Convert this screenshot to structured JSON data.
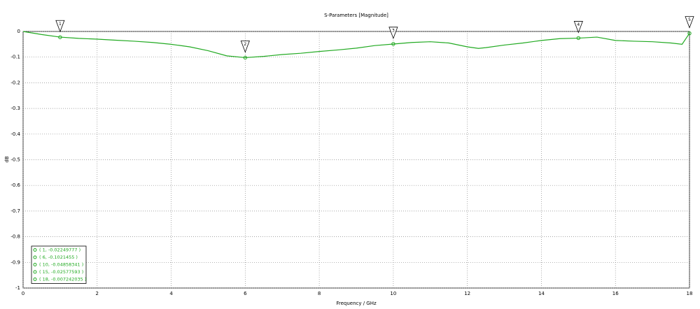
{
  "chart_data": {
    "type": "line",
    "title": "S-Parameters [Magnitude]",
    "x_label": "Frequency / GHz",
    "y_label": "dB",
    "xlim": [
      0,
      18
    ],
    "xticks": [
      0,
      2,
      4,
      6,
      8,
      10,
      12,
      14,
      16,
      18
    ],
    "ylim": [
      -1,
      0
    ],
    "yticks": [
      0,
      -0.1,
      -0.2,
      -0.3,
      -0.4,
      -0.5,
      -0.6,
      -0.7,
      -0.8,
      -0.9,
      -1
    ],
    "grid": true,
    "series": [
      {
        "color": "#22aa22",
        "x": [
          0,
          0.5,
          1,
          1.5,
          2,
          2.5,
          3,
          3.5,
          4,
          4.5,
          5,
          5.5,
          6,
          6.5,
          7,
          7.5,
          8,
          8.5,
          9,
          9.5,
          10,
          10.5,
          11,
          11.5,
          12,
          12.3,
          12.5,
          13,
          13.5,
          14,
          14.5,
          15,
          15.5,
          16,
          16.5,
          17,
          17.5,
          17.8,
          18
        ],
        "values": [
          0,
          -0.012,
          -0.022,
          -0.027,
          -0.03,
          -0.034,
          -0.038,
          -0.043,
          -0.05,
          -0.06,
          -0.075,
          -0.095,
          -0.102,
          -0.097,
          -0.09,
          -0.085,
          -0.078,
          -0.072,
          -0.065,
          -0.055,
          -0.049,
          -0.043,
          -0.04,
          -0.045,
          -0.06,
          -0.066,
          -0.063,
          -0.053,
          -0.045,
          -0.035,
          -0.028,
          -0.026,
          -0.022,
          -0.035,
          -0.038,
          -0.04,
          -0.045,
          -0.05,
          -0.007
        ]
      }
    ],
    "markers": [
      {
        "label": "1",
        "x": 1,
        "y": -0.02249777,
        "text": "( 1, -0.02249777 )"
      },
      {
        "label": "2",
        "x": 6,
        "y": -0.1021455,
        "text": "( 6, -0.1021455 )"
      },
      {
        "label": "3",
        "x": 10,
        "y": -0.04858341,
        "text": "( 10, -0.04858341 )"
      },
      {
        "label": "4",
        "x": 15,
        "y": -0.02577593,
        "text": "( 15, -0.02577593 )"
      },
      {
        "label": "5",
        "x": 18,
        "y": -0.007242035,
        "text": "( 18, -0.007242035 )"
      }
    ]
  }
}
